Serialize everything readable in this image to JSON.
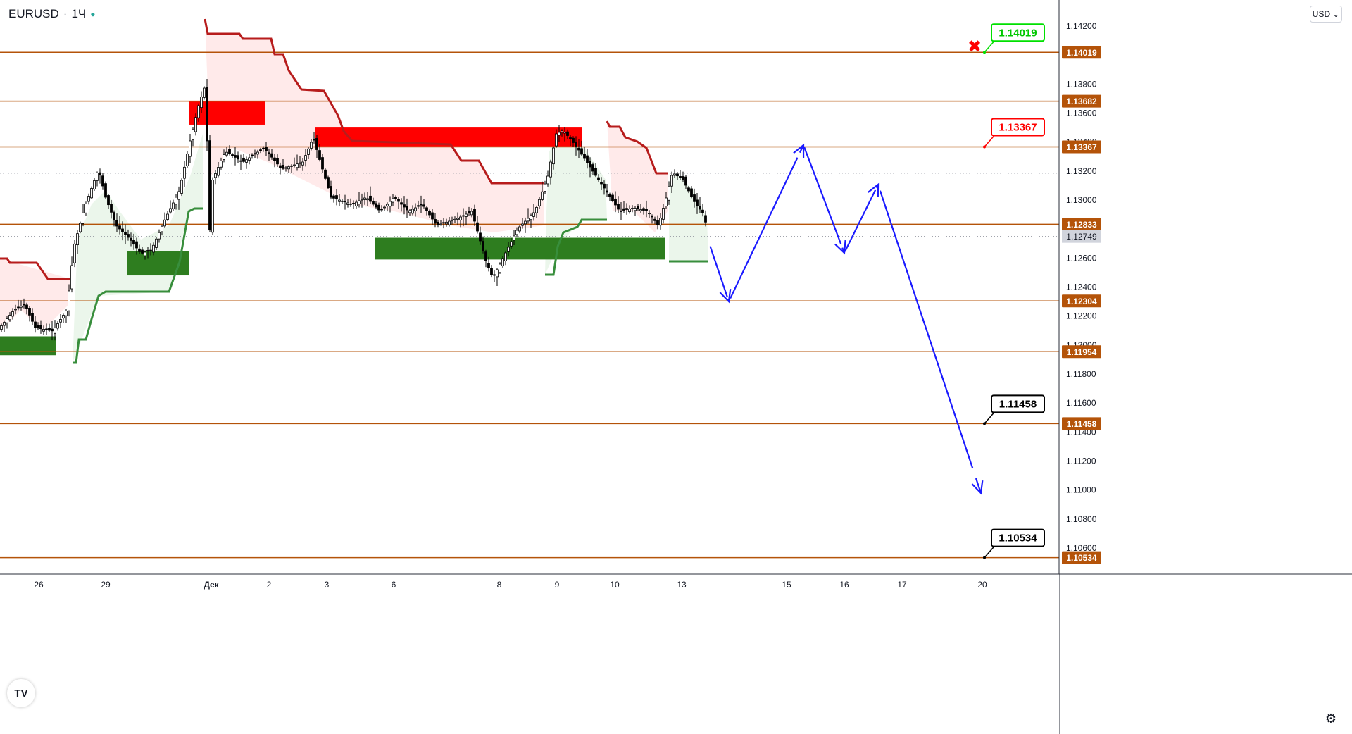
{
  "header": {
    "symbol": "EURUSD",
    "interval": "1Ч"
  },
  "currency": "USD",
  "chart_data": {
    "type": "candlestick",
    "symbol": "EURUSD",
    "interval": "1Ч",
    "ylim": [
      1.1044,
      1.1438
    ],
    "price_ticks": [
      1.142,
      1.138,
      1.136,
      1.134,
      1.132,
      1.13,
      1.126,
      1.124,
      1.122,
      1.12,
      1.118,
      1.116,
      1.114,
      1.112,
      1.11,
      1.108,
      1.106
    ],
    "price_tick_labels": [
      "1.14200",
      "1.13800",
      "1.13600",
      "1.13400",
      "1.13200",
      "1.13000",
      "1.12600",
      "1.12400",
      "1.12200",
      "1.12000",
      "1.11800",
      "1.11600",
      "1.11400",
      "1.11200",
      "1.11000",
      "1.10800",
      "1.10600"
    ],
    "x_ticks": [
      "26",
      "29",
      "Дек",
      "2",
      "3",
      "6",
      "8",
      "9",
      "10",
      "13",
      "15",
      "16",
      "17",
      "20"
    ],
    "current_price": {
      "value": 1.12749,
      "label": "1.12749"
    },
    "levels": [
      {
        "value": 1.14019,
        "label": "1.14019"
      },
      {
        "value": 1.13682,
        "label": "1.13682"
      },
      {
        "value": 1.13367,
        "label": "1.13367"
      },
      {
        "value": 1.12833,
        "label": "1.12833"
      },
      {
        "value": 1.12304,
        "label": "1.12304"
      },
      {
        "value": 1.11954,
        "label": "1.11954"
      },
      {
        "value": 1.11458,
        "label": "1.11458"
      },
      {
        "value": 1.10534,
        "label": "1.10534"
      }
    ],
    "callouts": [
      {
        "value": 1.14019,
        "label": "1.14019",
        "style": "green"
      },
      {
        "value": 1.13367,
        "label": "1.13367",
        "style": "red"
      },
      {
        "value": 1.11458,
        "label": "1.11458",
        "style": "black"
      },
      {
        "value": 1.10534,
        "label": "1.10534",
        "style": "black"
      }
    ],
    "forecast_path": [
      {
        "time": "13",
        "price": 1.1276
      },
      {
        "time": "14",
        "price": 1.123
      },
      {
        "time": "15",
        "price": 1.1338
      },
      {
        "time": "16",
        "price": 1.1263
      },
      {
        "time": "16.5",
        "price": 1.1311
      },
      {
        "time": "20",
        "price": 1.1098
      }
    ],
    "supply_zones": [
      {
        "from": "30",
        "to": "Дек",
        "top": 1.1368,
        "bottom": 1.1352
      },
      {
        "from": "3",
        "to": "9",
        "top": 1.135,
        "bottom": 1.1337
      }
    ],
    "demand_zones": [
      {
        "from": "25",
        "to": "26",
        "top": 1.1206,
        "bottom": 1.1193
      },
      {
        "from": "29",
        "to": "30",
        "top": 1.1265,
        "bottom": 1.1248
      },
      {
        "from": "6",
        "to": "10",
        "top": 1.1274,
        "bottom": 1.1259
      }
    ],
    "colors": {
      "level_line": "#b45309",
      "level_tag": "#b45309",
      "forecast": "#1a1aff",
      "supply": "#ff0000",
      "demand": "#2e7d1f",
      "trail_down": "#b71c1c",
      "trail_up": "#388e3c",
      "candle": "#000000"
    }
  }
}
